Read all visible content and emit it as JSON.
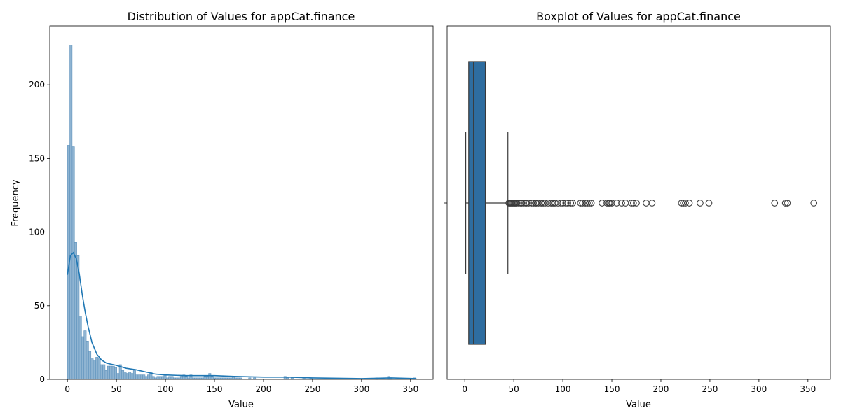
{
  "chart_data": [
    {
      "type": "histogram",
      "title": "Distribution of Values for appCat.finance",
      "xlabel": "Value",
      "ylabel": "Frequency",
      "xlim": [
        -18,
        373
      ],
      "ylim": [
        0,
        240
      ],
      "xticks": [
        0,
        50,
        100,
        150,
        200,
        250,
        300,
        350
      ],
      "yticks": [
        0,
        50,
        100,
        150,
        200
      ],
      "bin_width": 2.4,
      "bins": [
        {
          "x": 0.0,
          "count": 159
        },
        {
          "x": 2.4,
          "count": 227
        },
        {
          "x": 4.8,
          "count": 158
        },
        {
          "x": 7.2,
          "count": 93
        },
        {
          "x": 9.6,
          "count": 84
        },
        {
          "x": 12.0,
          "count": 43
        },
        {
          "x": 14.4,
          "count": 29
        },
        {
          "x": 16.8,
          "count": 33
        },
        {
          "x": 19.2,
          "count": 26
        },
        {
          "x": 21.6,
          "count": 19
        },
        {
          "x": 24.0,
          "count": 14
        },
        {
          "x": 26.4,
          "count": 13
        },
        {
          "x": 28.8,
          "count": 15
        },
        {
          "x": 31.2,
          "count": 14
        },
        {
          "x": 33.6,
          "count": 10
        },
        {
          "x": 36.0,
          "count": 10
        },
        {
          "x": 38.4,
          "count": 6
        },
        {
          "x": 40.8,
          "count": 9
        },
        {
          "x": 43.2,
          "count": 9
        },
        {
          "x": 45.6,
          "count": 9
        },
        {
          "x": 48.0,
          "count": 8
        },
        {
          "x": 50.4,
          "count": 4
        },
        {
          "x": 52.8,
          "count": 10
        },
        {
          "x": 55.2,
          "count": 6
        },
        {
          "x": 57.6,
          "count": 5
        },
        {
          "x": 60.0,
          "count": 4
        },
        {
          "x": 62.4,
          "count": 5
        },
        {
          "x": 64.8,
          "count": 4
        },
        {
          "x": 67.2,
          "count": 6
        },
        {
          "x": 69.6,
          "count": 3
        },
        {
          "x": 72.0,
          "count": 3
        },
        {
          "x": 74.4,
          "count": 3
        },
        {
          "x": 76.8,
          "count": 3
        },
        {
          "x": 79.2,
          "count": 2
        },
        {
          "x": 81.6,
          "count": 3
        },
        {
          "x": 84.0,
          "count": 5
        },
        {
          "x": 86.4,
          "count": 2
        },
        {
          "x": 88.8,
          "count": 1
        },
        {
          "x": 91.2,
          "count": 2
        },
        {
          "x": 93.6,
          "count": 2
        },
        {
          "x": 96.0,
          "count": 2
        },
        {
          "x": 98.4,
          "count": 3
        },
        {
          "x": 100.8,
          "count": 1
        },
        {
          "x": 103.2,
          "count": 2
        },
        {
          "x": 105.6,
          "count": 2
        },
        {
          "x": 108.0,
          "count": 1
        },
        {
          "x": 110.4,
          "count": 1
        },
        {
          "x": 112.8,
          "count": 1
        },
        {
          "x": 115.2,
          "count": 2
        },
        {
          "x": 117.6,
          "count": 3
        },
        {
          "x": 120.0,
          "count": 2
        },
        {
          "x": 122.4,
          "count": 1
        },
        {
          "x": 124.8,
          "count": 3
        },
        {
          "x": 127.2,
          "count": 1
        },
        {
          "x": 129.6,
          "count": 1
        },
        {
          "x": 132.0,
          "count": 1
        },
        {
          "x": 134.4,
          "count": 1
        },
        {
          "x": 136.8,
          "count": 1
        },
        {
          "x": 139.2,
          "count": 2
        },
        {
          "x": 141.6,
          "count": 2
        },
        {
          "x": 144.0,
          "count": 4
        },
        {
          "x": 146.4,
          "count": 2
        },
        {
          "x": 148.8,
          "count": 1
        },
        {
          "x": 151.2,
          "count": 1
        },
        {
          "x": 153.6,
          "count": 1
        },
        {
          "x": 156.0,
          "count": 1
        },
        {
          "x": 158.4,
          "count": 1
        },
        {
          "x": 160.8,
          "count": 1
        },
        {
          "x": 163.2,
          "count": 1
        },
        {
          "x": 165.6,
          "count": 1
        },
        {
          "x": 168.0,
          "count": 2
        },
        {
          "x": 170.4,
          "count": 1
        },
        {
          "x": 172.8,
          "count": 1
        },
        {
          "x": 175.2,
          "count": 1
        },
        {
          "x": 184.8,
          "count": 1
        },
        {
          "x": 189.6,
          "count": 1
        },
        {
          "x": 220.8,
          "count": 2
        },
        {
          "x": 223.2,
          "count": 1
        },
        {
          "x": 228.0,
          "count": 1
        },
        {
          "x": 240.0,
          "count": 1
        },
        {
          "x": 247.2,
          "count": 1
        },
        {
          "x": 314.4,
          "count": 1
        },
        {
          "x": 326.4,
          "count": 2
        },
        {
          "x": 328.8,
          "count": 1
        },
        {
          "x": 352.8,
          "count": 1
        }
      ],
      "kde": {
        "x": [
          0,
          3,
          6,
          9,
          12,
          15,
          18,
          21,
          25,
          30,
          35,
          40,
          50,
          60,
          70,
          80,
          90,
          100,
          120,
          140,
          150,
          170,
          200,
          225,
          250,
          300,
          330,
          356
        ],
        "y": [
          71,
          84,
          86,
          82,
          72,
          58,
          46,
          36,
          25,
          17,
          13,
          11,
          9.5,
          7.5,
          6.5,
          5,
          3.5,
          3,
          2.5,
          2.5,
          2.5,
          2,
          1.5,
          1.5,
          1,
          0.5,
          1,
          0.5
        ]
      },
      "color": "#1f77b4"
    },
    {
      "type": "boxplot",
      "title": "Boxplot of Values for appCat.finance",
      "xlabel": "Value",
      "xlim": [
        -18,
        373
      ],
      "xticks": [
        0,
        50,
        100,
        150,
        200,
        250,
        300,
        350
      ],
      "box": {
        "whisker_low": 1,
        "q1": 4,
        "median": 9,
        "q3": 21,
        "whisker_high": 44
      },
      "outliers": [
        45,
        46,
        47,
        48,
        49,
        50,
        51,
        52,
        53,
        55,
        57,
        58,
        60,
        62,
        63,
        65,
        68,
        70,
        72,
        73,
        75,
        78,
        80,
        82,
        85,
        88,
        90,
        92,
        95,
        98,
        100,
        103,
        105,
        108,
        110,
        118,
        120,
        123,
        125,
        127,
        129,
        140,
        145,
        147,
        148,
        150,
        155,
        160,
        164,
        170,
        172,
        175,
        185,
        191,
        221,
        223,
        225,
        229,
        240,
        249,
        316,
        327,
        329,
        356
      ],
      "color": "#2e6da0"
    }
  ]
}
